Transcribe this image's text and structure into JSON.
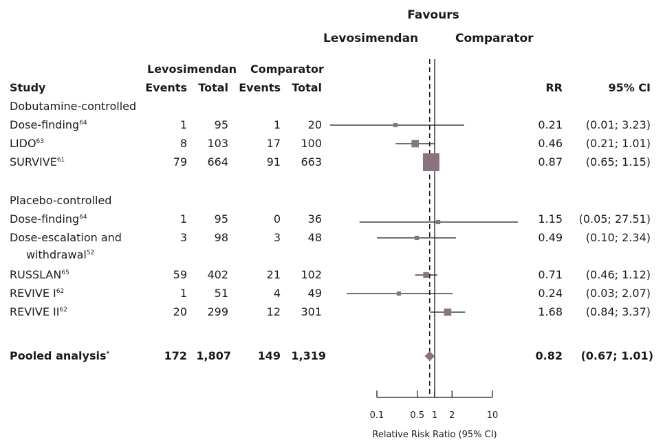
{
  "header": {
    "favours": "Favours",
    "favours_left": "Levosimendan",
    "favours_right": "Comparator",
    "group_levo": "Levosimendan",
    "group_comp": "Comparator",
    "col_study": "Study",
    "col_levo_events": "Events",
    "col_levo_total": "Total",
    "col_comp_events": "Events",
    "col_comp_total": "Total",
    "col_rr": "RR",
    "col_ci": "95% CI"
  },
  "sections": {
    "dobutamine": "Dobutamine-controlled",
    "placebo": "Placebo-controlled"
  },
  "rows": [
    {
      "name": "Dose-finding",
      "ref": "64",
      "levo_events": "1",
      "levo_total": "95",
      "comp_events": "1",
      "comp_total": "20",
      "rr_text": "0.21",
      "ci_text": "(0.01; 3.23)"
    },
    {
      "name": "LIDO",
      "ref": "63",
      "levo_events": "8",
      "levo_total": "103",
      "comp_events": "17",
      "comp_total": "100",
      "rr_text": "0.46",
      "ci_text": "(0.21; 1.01)"
    },
    {
      "name": "SURVIVE",
      "ref": "61",
      "levo_events": "79",
      "levo_total": "664",
      "comp_events": "91",
      "comp_total": "663",
      "rr_text": "0.87",
      "ci_text": "(0.65; 1.15)"
    },
    {
      "name": "Dose-finding",
      "ref": "64",
      "levo_events": "1",
      "levo_total": "95",
      "comp_events": "0",
      "comp_total": "36",
      "rr_text": "1.15",
      "ci_text": "(0.05; 27.51)"
    },
    {
      "name": "Dose-escalation and",
      "name2": "withdrawal",
      "ref": "52",
      "levo_events": "3",
      "levo_total": "98",
      "comp_events": "3",
      "comp_total": "48",
      "rr_text": "0.49",
      "ci_text": "(0.10; 2.34)"
    },
    {
      "name": "RUSSLAN",
      "ref": "65",
      "levo_events": "59",
      "levo_total": "402",
      "comp_events": "21",
      "comp_total": "102",
      "rr_text": "0.71",
      "ci_text": "(0.46; 1.12)"
    },
    {
      "name": "REVIVE I",
      "ref": "62",
      "levo_events": "1",
      "levo_total": "51",
      "comp_events": "4",
      "comp_total": "49",
      "rr_text": "0.24",
      "ci_text": "(0.03; 2.07)"
    },
    {
      "name": "REVIVE II",
      "ref": "62",
      "levo_events": "20",
      "levo_total": "299",
      "comp_events": "12",
      "comp_total": "301",
      "rr_text": "1.68",
      "ci_text": "(0.84; 3.37)"
    }
  ],
  "pooled": {
    "name": "Pooled analysis",
    "marker": "*",
    "levo_events": "172",
    "levo_total": "1,807",
    "comp_events": "149",
    "comp_total": "1,319",
    "rr_text": "0.82",
    "ci_text": "(0.67; 1.01)"
  },
  "chart_data": {
    "type": "forest",
    "scale": "log",
    "xlim": [
      0.1,
      10
    ],
    "xticks": [
      "0.1",
      "0.5",
      "1",
      "2",
      "10"
    ],
    "xlabel": "Relative Risk Ratio (95% CI)",
    "reference_line": 1,
    "pooled_line": 0.82,
    "marker_color": "#8a7380",
    "line_color": "#1a1a1a",
    "studies": [
      {
        "rr": 0.21,
        "lo": 0.01,
        "hi": 3.23,
        "weight": 1
      },
      {
        "rr": 0.46,
        "lo": 0.21,
        "hi": 1.01,
        "weight": 3
      },
      {
        "rr": 0.87,
        "lo": 0.65,
        "hi": 1.15,
        "weight": 10
      },
      {
        "rr": 1.15,
        "lo": 0.05,
        "hi": 27.51,
        "weight": 1
      },
      {
        "rr": 0.49,
        "lo": 0.1,
        "hi": 2.34,
        "weight": 1
      },
      {
        "rr": 0.71,
        "lo": 0.46,
        "hi": 1.12,
        "weight": 2
      },
      {
        "rr": 0.24,
        "lo": 0.03,
        "hi": 2.07,
        "weight": 1
      },
      {
        "rr": 1.68,
        "lo": 0.84,
        "hi": 3.37,
        "weight": 3
      }
    ],
    "pooled": {
      "rr": 0.82,
      "lo": 0.67,
      "hi": 1.01
    }
  }
}
